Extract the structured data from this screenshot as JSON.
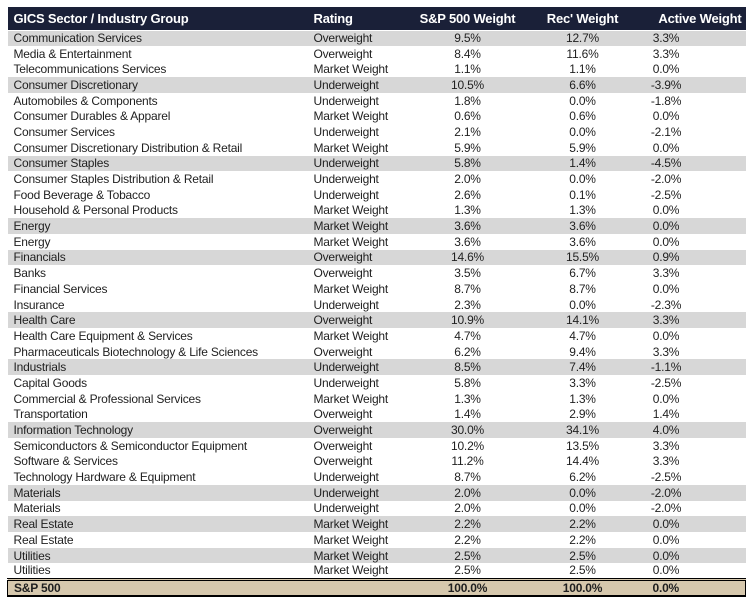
{
  "colors": {
    "header_bg": "#1a2038",
    "header_text": "#ffffff",
    "sector_row_bg": "#d7d7d7",
    "industry_row_bg": "#ffffff",
    "footer_bg": "#d6c8ad",
    "text": "#1f1f1f",
    "border": "#000000"
  },
  "table": {
    "columns": [
      {
        "key": "sector",
        "label": "GICS Sector / Industry Group"
      },
      {
        "key": "rating",
        "label": "Rating"
      },
      {
        "key": "sp500",
        "label": "S&P 500 Weight"
      },
      {
        "key": "rec",
        "label": "Rec' Weight"
      },
      {
        "key": "active",
        "label": "Active Weight"
      }
    ],
    "rows": [
      {
        "sector": "Communication Services",
        "rating": "Overweight",
        "sp500": "9.5%",
        "rec": "12.7%",
        "active": "3.3%",
        "is_sector": true
      },
      {
        "sector": "Media & Entertainment",
        "rating": "Overweight",
        "sp500": "8.4%",
        "rec": "11.6%",
        "active": "3.3%",
        "is_sector": false
      },
      {
        "sector": "Telecommunications Services",
        "rating": "Market Weight",
        "sp500": "1.1%",
        "rec": "1.1%",
        "active": "0.0%",
        "is_sector": false
      },
      {
        "sector": "Consumer Discretionary",
        "rating": "Underweight",
        "sp500": "10.5%",
        "rec": "6.6%",
        "active": "-3.9%",
        "is_sector": true
      },
      {
        "sector": "Automobiles & Components",
        "rating": "Underweight",
        "sp500": "1.8%",
        "rec": "0.0%",
        "active": "-1.8%",
        "is_sector": false
      },
      {
        "sector": "Consumer Durables & Apparel",
        "rating": "Market Weight",
        "sp500": "0.6%",
        "rec": "0.6%",
        "active": "0.0%",
        "is_sector": false
      },
      {
        "sector": "Consumer Services",
        "rating": "Underweight",
        "sp500": "2.1%",
        "rec": "0.0%",
        "active": "-2.1%",
        "is_sector": false
      },
      {
        "sector": "Consumer Discretionary Distribution & Retail",
        "rating": "Market Weight",
        "sp500": "5.9%",
        "rec": "5.9%",
        "active": "0.0%",
        "is_sector": false
      },
      {
        "sector": "Consumer Staples",
        "rating": "Underweight",
        "sp500": "5.8%",
        "rec": "1.4%",
        "active": "-4.5%",
        "is_sector": true
      },
      {
        "sector": "Consumer Staples Distribution & Retail",
        "rating": "Underweight",
        "sp500": "2.0%",
        "rec": "0.0%",
        "active": "-2.0%",
        "is_sector": false
      },
      {
        "sector": "Food Beverage & Tobacco",
        "rating": "Underweight",
        "sp500": "2.6%",
        "rec": "0.1%",
        "active": "-2.5%",
        "is_sector": false
      },
      {
        "sector": "Household & Personal Products",
        "rating": "Market Weight",
        "sp500": "1.3%",
        "rec": "1.3%",
        "active": "0.0%",
        "is_sector": false
      },
      {
        "sector": "Energy",
        "rating": "Market Weight",
        "sp500": "3.6%",
        "rec": "3.6%",
        "active": "0.0%",
        "is_sector": true
      },
      {
        "sector": "Energy",
        "rating": "Market Weight",
        "sp500": "3.6%",
        "rec": "3.6%",
        "active": "0.0%",
        "is_sector": false
      },
      {
        "sector": "Financials",
        "rating": "Overweight",
        "sp500": "14.6%",
        "rec": "15.5%",
        "active": "0.9%",
        "is_sector": true
      },
      {
        "sector": "Banks",
        "rating": "Overweight",
        "sp500": "3.5%",
        "rec": "6.7%",
        "active": "3.3%",
        "is_sector": false
      },
      {
        "sector": "Financial Services",
        "rating": "Market Weight",
        "sp500": "8.7%",
        "rec": "8.7%",
        "active": "0.0%",
        "is_sector": false
      },
      {
        "sector": "Insurance",
        "rating": "Underweight",
        "sp500": "2.3%",
        "rec": "0.0%",
        "active": "-2.3%",
        "is_sector": false
      },
      {
        "sector": "Health Care",
        "rating": "Overweight",
        "sp500": "10.9%",
        "rec": "14.1%",
        "active": "3.3%",
        "is_sector": true
      },
      {
        "sector": "Health Care Equipment & Services",
        "rating": "Market Weight",
        "sp500": "4.7%",
        "rec": "4.7%",
        "active": "0.0%",
        "is_sector": false
      },
      {
        "sector": "Pharmaceuticals Biotechnology & Life Sciences",
        "rating": "Overweight",
        "sp500": "6.2%",
        "rec": "9.4%",
        "active": "3.3%",
        "is_sector": false
      },
      {
        "sector": "Industrials",
        "rating": "Underweight",
        "sp500": "8.5%",
        "rec": "7.4%",
        "active": "-1.1%",
        "is_sector": true
      },
      {
        "sector": "Capital Goods",
        "rating": "Underweight",
        "sp500": "5.8%",
        "rec": "3.3%",
        "active": "-2.5%",
        "is_sector": false
      },
      {
        "sector": "Commercial & Professional Services",
        "rating": "Market Weight",
        "sp500": "1.3%",
        "rec": "1.3%",
        "active": "0.0%",
        "is_sector": false
      },
      {
        "sector": "Transportation",
        "rating": "Overweight",
        "sp500": "1.4%",
        "rec": "2.9%",
        "active": "1.4%",
        "is_sector": false
      },
      {
        "sector": "Information Technology",
        "rating": "Overweight",
        "sp500": "30.0%",
        "rec": "34.1%",
        "active": "4.0%",
        "is_sector": true
      },
      {
        "sector": "Semiconductors & Semiconductor Equipment",
        "rating": "Overweight",
        "sp500": "10.2%",
        "rec": "13.5%",
        "active": "3.3%",
        "is_sector": false
      },
      {
        "sector": "Software & Services",
        "rating": "Overweight",
        "sp500": "11.2%",
        "rec": "14.4%",
        "active": "3.3%",
        "is_sector": false
      },
      {
        "sector": "Technology Hardware & Equipment",
        "rating": "Underweight",
        "sp500": "8.7%",
        "rec": "6.2%",
        "active": "-2.5%",
        "is_sector": false
      },
      {
        "sector": "Materials",
        "rating": "Underweight",
        "sp500": "2.0%",
        "rec": "0.0%",
        "active": "-2.0%",
        "is_sector": true
      },
      {
        "sector": "Materials",
        "rating": "Underweight",
        "sp500": "2.0%",
        "rec": "0.0%",
        "active": "-2.0%",
        "is_sector": false
      },
      {
        "sector": "Real Estate",
        "rating": "Market Weight",
        "sp500": "2.2%",
        "rec": "2.2%",
        "active": "0.0%",
        "is_sector": true
      },
      {
        "sector": "Real Estate",
        "rating": "Market Weight",
        "sp500": "2.2%",
        "rec": "2.2%",
        "active": "0.0%",
        "is_sector": false
      },
      {
        "sector": "Utilities",
        "rating": "Market Weight",
        "sp500": "2.5%",
        "rec": "2.5%",
        "active": "0.0%",
        "is_sector": true
      },
      {
        "sector": "Utilities",
        "rating": "Market Weight",
        "sp500": "2.5%",
        "rec": "2.5%",
        "active": "0.0%",
        "is_sector": false
      }
    ],
    "footer": {
      "sector": "S&P 500",
      "rating": "",
      "sp500": "100.0%",
      "rec": "100.0%",
      "active": "0.0%"
    }
  }
}
